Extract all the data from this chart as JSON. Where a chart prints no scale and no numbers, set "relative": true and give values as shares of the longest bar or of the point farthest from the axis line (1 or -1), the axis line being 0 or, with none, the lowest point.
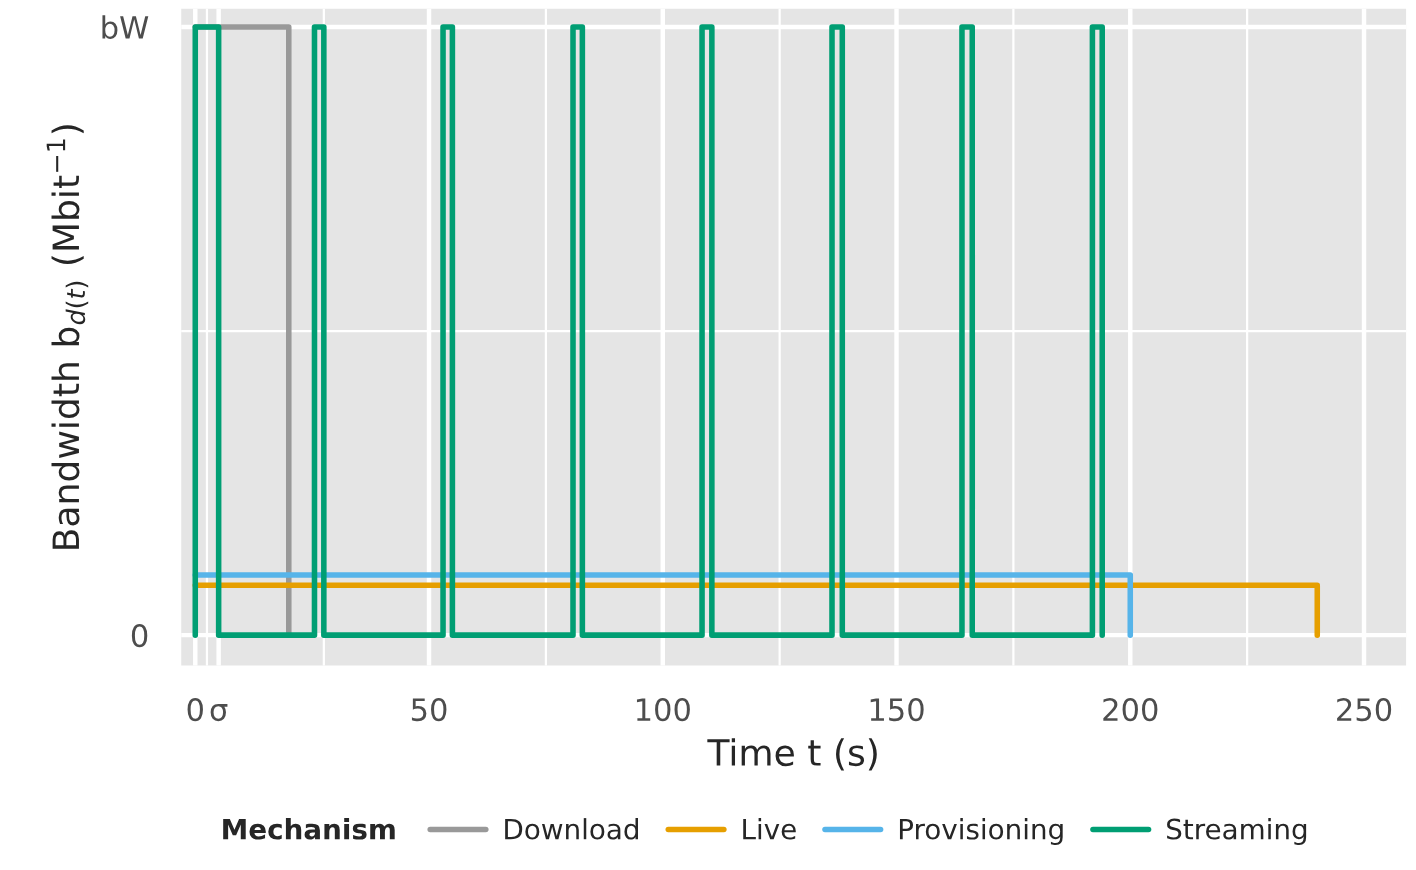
{
  "chart_data": {
    "type": "step",
    "xlabel": "Time t (s)",
    "ylabel": "Bandwidth b$_{d(t)}$ (Mbit$^{−1}$)",
    "legend_title": "Mechanism",
    "legend": "bottom",
    "grid": true,
    "xlim": [
      -3,
      259
    ],
    "relative": true,
    "annotations": [
      "0",
      "bW"
    ],
    "xticks": [
      0,
      {
        "value": 5,
        "label": "σ"
      },
      50,
      100,
      150,
      200,
      250
    ],
    "series": [
      {
        "name": "Download",
        "color": "#999999",
        "x": [
          0,
          20
        ],
        "values": [
          1,
          0
        ]
      },
      {
        "name": "Live",
        "color": "#e69f00",
        "x": [
          0,
          240
        ],
        "values": [
          0.082,
          0
        ]
      },
      {
        "name": "Provisioning",
        "color": "#56b4e9",
        "x": [
          0,
          200
        ],
        "values": [
          0.099,
          0
        ]
      },
      {
        "name": "Streaming",
        "color": "#009e73",
        "x": [
          0,
          0,
          5,
          25.5,
          27.5,
          53,
          55,
          80.8,
          82.8,
          108.4,
          110.5,
          136.2,
          138.4,
          164,
          166.2,
          191.9,
          194
        ],
        "values": [
          0,
          1,
          0,
          1,
          0,
          1,
          0,
          1,
          0,
          1,
          0,
          1,
          0,
          1,
          0,
          1,
          0
        ]
      }
    ]
  }
}
